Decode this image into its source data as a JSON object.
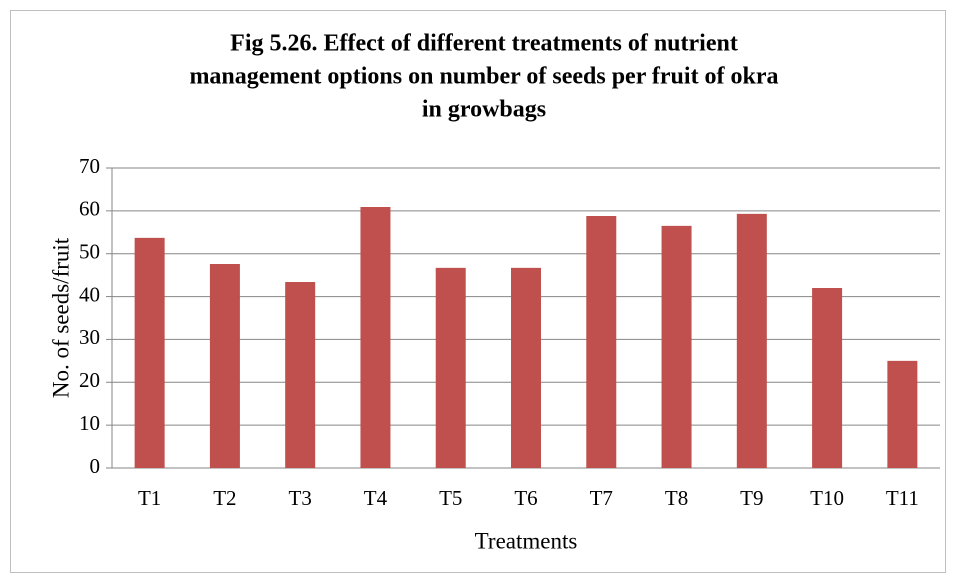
{
  "chart_data": {
    "type": "bar",
    "title": [
      "Fig 5.26. Effect of  different treatments  of nutrient",
      "management options  on number of seeds per fruit of okra",
      "in growbags"
    ],
    "xlabel": "Treatments",
    "ylabel": "No. of seeds/fruit",
    "categories": [
      "T1",
      "T2",
      "T3",
      "T4",
      "T5",
      "T6",
      "T7",
      "T8",
      "T9",
      "T10",
      "T11"
    ],
    "values": [
      53.7,
      47.6,
      43.4,
      60.9,
      46.7,
      46.7,
      58.8,
      56.5,
      59.3,
      42,
      25
    ],
    "color": "#c0504d",
    "ylim": [
      0,
      70
    ],
    "yticks": [
      0,
      10,
      20,
      30,
      40,
      50,
      60,
      70
    ],
    "grid": true
  }
}
